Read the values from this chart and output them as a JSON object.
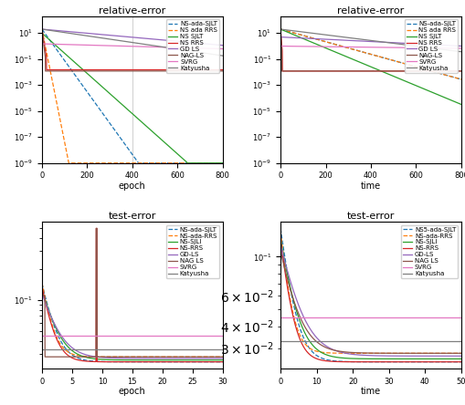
{
  "top_left": {
    "title": "relative-error",
    "xlabel": "epoch",
    "xlim": [
      0,
      800
    ],
    "ylim": [
      1e-09,
      200
    ]
  },
  "top_right": {
    "title": "relative-error",
    "xlabel": "time",
    "xlim": [
      0,
      800
    ],
    "ylim": [
      1e-09,
      200
    ]
  },
  "bot_left": {
    "title": "test-error",
    "xlabel": "epoch",
    "xlim": [
      0,
      30
    ]
  },
  "bot_right": {
    "title": "test-error",
    "xlabel": "time",
    "xlim": [
      0,
      50
    ]
  },
  "legend_top": [
    {
      "label": "NS-ada-SJLT",
      "color": "#1f77b4",
      "linestyle": "--"
    },
    {
      "label": "NS ada RRS",
      "color": "#ff7f0e",
      "linestyle": "--"
    },
    {
      "label": "NS SJLT",
      "color": "#2ca02c",
      "linestyle": "-"
    },
    {
      "label": "NS RRS",
      "color": "#d62728",
      "linestyle": "-"
    },
    {
      "label": "GD LS",
      "color": "#9467bd",
      "linestyle": "-"
    },
    {
      "label": "NAG-LS",
      "color": "#8c564b",
      "linestyle": "-"
    },
    {
      "label": "SVRG",
      "color": "#e377c2",
      "linestyle": "-"
    },
    {
      "label": "Katyusha",
      "color": "#7f7f7f",
      "linestyle": "-"
    }
  ],
  "legend_bot_left": [
    {
      "label": "NS-ada-SJLT",
      "color": "#1f77b4",
      "linestyle": "--"
    },
    {
      "label": "NS-ada-RRS",
      "color": "#ff7f0e",
      "linestyle": "--"
    },
    {
      "label": "NS-SJLI",
      "color": "#2ca02c",
      "linestyle": "-"
    },
    {
      "label": "NS-RRS",
      "color": "#d62728",
      "linestyle": "-"
    },
    {
      "label": "GD-LS",
      "color": "#9467bd",
      "linestyle": "-"
    },
    {
      "label": "NAG LS",
      "color": "#8c564b",
      "linestyle": "-"
    },
    {
      "label": "SVRG",
      "color": "#e377c2",
      "linestyle": "-"
    },
    {
      "label": "Katyusha",
      "color": "#7f7f7f",
      "linestyle": "-"
    }
  ],
  "legend_bot_right": [
    {
      "label": "NS5-ada-SJLT",
      "color": "#1f77b4",
      "linestyle": "--"
    },
    {
      "label": "NS-ada-RRS",
      "color": "#ff7f0e",
      "linestyle": "--"
    },
    {
      "label": "NS-SJLI",
      "color": "#2ca02c",
      "linestyle": "-"
    },
    {
      "label": "NS-RRS",
      "color": "#d62728",
      "linestyle": "-"
    },
    {
      "label": "GD-LS",
      "color": "#9467bd",
      "linestyle": "-"
    },
    {
      "label": "NAG LS",
      "color": "#8c564b",
      "linestyle": "-"
    },
    {
      "label": "SVRG",
      "color": "#e377c2",
      "linestyle": "-"
    },
    {
      "label": "Katyusha",
      "color": "#7f7f7f",
      "linestyle": "-"
    }
  ],
  "colors": {
    "NS-ada-SJLT": "#1f77b4",
    "NS ada RRS": "#ff7f0e",
    "NS-ada-RRS": "#ff7f0e",
    "NS SJLT": "#2ca02c",
    "NS-SJLT": "#2ca02c",
    "NS RRS": "#d62728",
    "NS-RRS": "#d62728",
    "GD LS": "#9467bd",
    "GD-LS": "#9467bd",
    "NAG-LS": "#8c564b",
    "NAG LS": "#8c564b",
    "SVRG": "#e377c2",
    "Katyusha": "#7f7f7f"
  },
  "dashes": {
    "NS-ada-SJLT": "--",
    "NS ada RRS": "--",
    "NS-ada-RRS": "--",
    "NS SJLT": "-",
    "NS-SJLT": "-",
    "NS RRS": "-",
    "NS-RRS": "-",
    "GD LS": "-",
    "GD-LS": "-",
    "NAG-LS": "-",
    "NAG LS": "-",
    "SVRG": "-",
    "Katyusha": "-"
  }
}
